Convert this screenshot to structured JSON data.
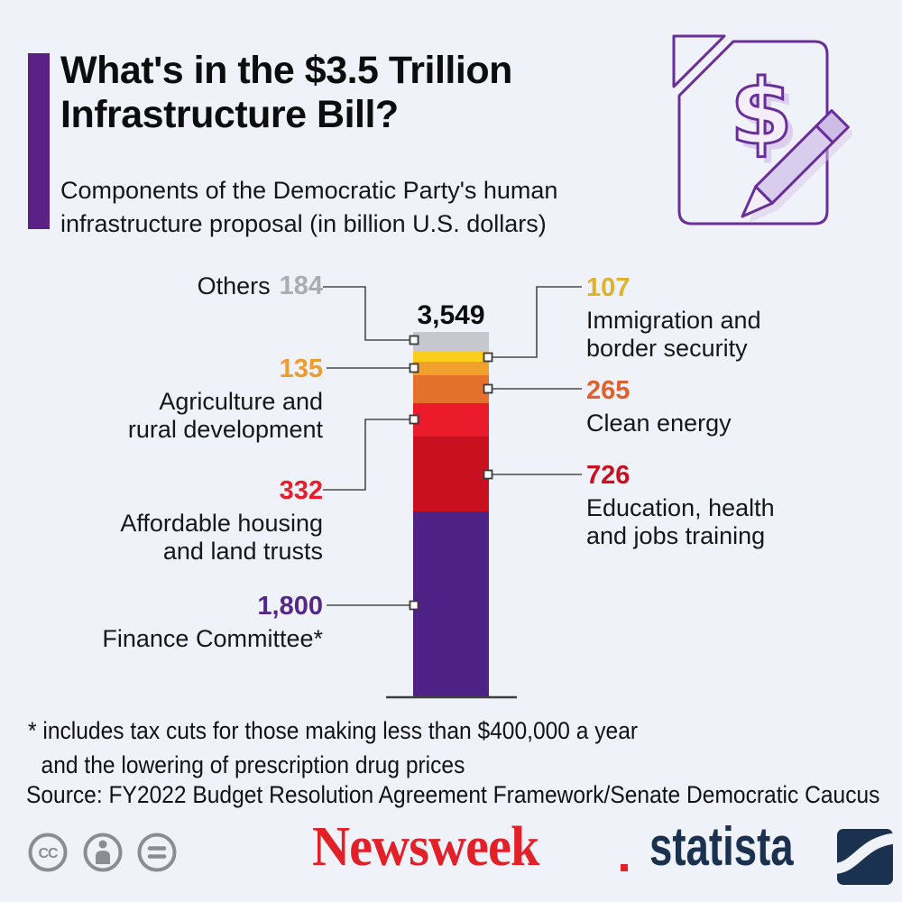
{
  "header": {
    "title_line1": "What's in the $3.5 Trillion",
    "title_line2": "Infrastructure Bill?",
    "subtitle_line1": "Components of the Democratic Party's human",
    "subtitle_line2": "infrastructure proposal (in billion U.S. dollars)",
    "accent_color": "#5b2184",
    "icon": "money-document-pencil-icon",
    "icon_color": "#6a2d9c"
  },
  "chart_data": {
    "type": "bar",
    "stacked": true,
    "unit": "billion U.S. dollars",
    "total": 3549,
    "total_label": "3,549",
    "legend_position": "callouts",
    "grid": false,
    "segments": [
      {
        "name": "Others",
        "value": 184,
        "display": "184",
        "bar_color": "#c7c7cf",
        "label_color": "#abacb4",
        "lines": [
          "Others"
        ],
        "side": "left"
      },
      {
        "name": "Immigration and border security",
        "value": 107,
        "display": "107",
        "bar_color": "#fbce1d",
        "label_color": "#dfb32e",
        "lines": [
          "Immigration and",
          "border security"
        ],
        "side": "right"
      },
      {
        "name": "Agriculture and rural development",
        "value": 135,
        "display": "135",
        "bar_color": "#f0a02b",
        "label_color": "#ef9b2d",
        "lines": [
          "Agriculture and",
          "rural development"
        ],
        "side": "left"
      },
      {
        "name": "Clean energy",
        "value": 265,
        "display": "265",
        "bar_color": "#e5702b",
        "label_color": "#e2602c",
        "lines": [
          "Clean energy"
        ],
        "side": "right"
      },
      {
        "name": "Affordable housing and land trusts",
        "value": 332,
        "display": "332",
        "bar_color": "#ec1b2c",
        "label_color": "#ec1b2c",
        "lines": [
          "Affordable housing",
          "and land trusts"
        ],
        "side": "left"
      },
      {
        "name": "Education, health and jobs training",
        "value": 726,
        "display": "726",
        "bar_color": "#c8101e",
        "label_color": "#c8101e",
        "lines": [
          "Education, health",
          "and jobs training"
        ],
        "side": "right"
      },
      {
        "name": "Finance Committee*",
        "value": 1800,
        "display": "1,800",
        "bar_color": "#4d2185",
        "label_color": "#542789",
        "lines": [
          "Finance Committee*"
        ],
        "side": "left"
      }
    ]
  },
  "footnote": {
    "line1": "* includes tax cuts for those making less than $400,000 a year",
    "line2": "and the lowering of prescription drug prices",
    "source": "Source: FY2022 Budget Resolution Agreement Framework/Senate Democratic Caucus"
  },
  "footer": {
    "license_icons": [
      "cc-icon",
      "attribution-person-icon",
      "equals-icon"
    ],
    "license_icon_color": "#8a8d91",
    "newsweek_logo_text": "Newsweek",
    "newsweek_color": "#e32028",
    "statista_logo_text": "statista",
    "statista_color": "#1a3150"
  }
}
